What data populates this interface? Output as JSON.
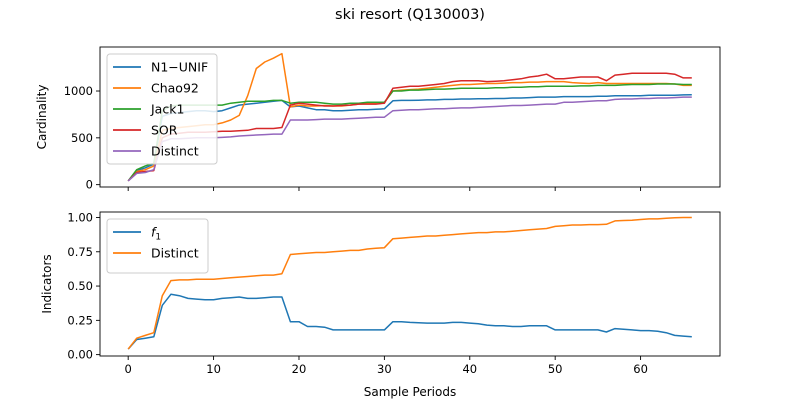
{
  "figure": {
    "title": "ski resort (Q130003)",
    "xlabel": "Sample Periods"
  },
  "chart_data": [
    {
      "type": "line",
      "ylabel": "Cardinality",
      "xlim": [
        -3.3,
        69.3
      ],
      "ylim": [
        -25,
        1470
      ],
      "xticks": [
        0,
        10,
        20,
        30,
        40,
        50,
        60
      ],
      "yticks": [
        0,
        500,
        1000
      ],
      "legend": "upper-left",
      "series": [
        {
          "name": "N1−UNIF",
          "color": "#1f77b4",
          "values": [
            40,
            150,
            180,
            220,
            730,
            760,
            770,
            780,
            790,
            790,
            780,
            790,
            820,
            850,
            860,
            870,
            880,
            890,
            900,
            830,
            840,
            820,
            800,
            800,
            790,
            790,
            795,
            800,
            800,
            805,
            810,
            895,
            900,
            900,
            902,
            905,
            905,
            910,
            910,
            915,
            915,
            918,
            918,
            920,
            920,
            925,
            925,
            930,
            935,
            935,
            935,
            940,
            940,
            940,
            940,
            945,
            945,
            950,
            950,
            950,
            950,
            955,
            955,
            955,
            955,
            958,
            960
          ]
        },
        {
          "name": "Chao92",
          "color": "#ff7f0e",
          "values": [
            40,
            140,
            160,
            200,
            580,
            600,
            610,
            620,
            630,
            640,
            640,
            660,
            690,
            740,
            950,
            1240,
            1310,
            1350,
            1400,
            830,
            850,
            840,
            840,
            845,
            840,
            840,
            850,
            860,
            870,
            875,
            880,
            1000,
            1010,
            1015,
            1020,
            1030,
            1040,
            1050,
            1060,
            1070,
            1070,
            1075,
            1080,
            1080,
            1085,
            1090,
            1090,
            1095,
            1095,
            1100,
            1100,
            1100,
            1090,
            1085,
            1080,
            1090,
            1080,
            1080,
            1080,
            1080,
            1080,
            1080,
            1080,
            1080,
            1075,
            1060,
            1060
          ]
        },
        {
          "name": "Jack1",
          "color": "#2ca02c",
          "values": [
            40,
            160,
            200,
            230,
            790,
            840,
            850,
            850,
            850,
            850,
            850,
            850,
            870,
            880,
            890,
            890,
            890,
            900,
            900,
            870,
            880,
            880,
            880,
            870,
            860,
            860,
            870,
            870,
            880,
            880,
            880,
            1000,
            1000,
            1010,
            1010,
            1015,
            1020,
            1020,
            1025,
            1030,
            1030,
            1030,
            1030,
            1035,
            1035,
            1040,
            1040,
            1045,
            1045,
            1050,
            1050,
            1050,
            1050,
            1055,
            1055,
            1060,
            1060,
            1060,
            1065,
            1070,
            1070,
            1070,
            1075,
            1075,
            1075,
            1070,
            1070
          ]
        },
        {
          "name": "SOR",
          "color": "#d62728",
          "values": [
            40,
            130,
            140,
            150,
            500,
            540,
            550,
            560,
            560,
            560,
            565,
            570,
            570,
            575,
            580,
            600,
            600,
            600,
            610,
            850,
            870,
            860,
            850,
            840,
            840,
            845,
            850,
            860,
            860,
            860,
            870,
            1030,
            1040,
            1050,
            1050,
            1060,
            1070,
            1080,
            1100,
            1110,
            1110,
            1110,
            1100,
            1105,
            1110,
            1120,
            1130,
            1150,
            1160,
            1180,
            1130,
            1130,
            1140,
            1150,
            1150,
            1150,
            1110,
            1170,
            1180,
            1190,
            1190,
            1190,
            1190,
            1190,
            1180,
            1140,
            1140
          ]
        },
        {
          "name": "Distinct",
          "color": "#9467bd",
          "values": [
            40,
            120,
            130,
            160,
            460,
            490,
            490,
            495,
            500,
            500,
            500,
            505,
            510,
            520,
            525,
            530,
            535,
            540,
            540,
            690,
            690,
            690,
            695,
            700,
            700,
            700,
            705,
            710,
            715,
            720,
            720,
            790,
            795,
            800,
            800,
            805,
            810,
            810,
            815,
            820,
            820,
            825,
            830,
            835,
            840,
            845,
            845,
            850,
            855,
            860,
            860,
            880,
            880,
            885,
            890,
            895,
            895,
            910,
            915,
            915,
            920,
            920,
            925,
            925,
            930,
            935,
            935
          ]
        }
      ]
    },
    {
      "type": "line",
      "ylabel": "Indicators",
      "xlim": [
        -3.3,
        69.3
      ],
      "ylim": [
        -0.01,
        1.04
      ],
      "xticks": [
        0,
        10,
        20,
        30,
        40,
        50,
        60
      ],
      "yticks": [
        0.0,
        0.25,
        0.5,
        0.75,
        1.0
      ],
      "legend": "upper-left",
      "series": [
        {
          "name": "f",
          "subscript": "1",
          "color": "#1f77b4",
          "values": [
            0.04,
            0.11,
            0.12,
            0.13,
            0.36,
            0.44,
            0.43,
            0.41,
            0.405,
            0.4,
            0.4,
            0.41,
            0.415,
            0.42,
            0.41,
            0.41,
            0.415,
            0.42,
            0.42,
            0.24,
            0.24,
            0.205,
            0.205,
            0.2,
            0.18,
            0.18,
            0.18,
            0.18,
            0.18,
            0.18,
            0.18,
            0.24,
            0.24,
            0.235,
            0.232,
            0.23,
            0.23,
            0.23,
            0.235,
            0.235,
            0.23,
            0.225,
            0.215,
            0.21,
            0.21,
            0.205,
            0.205,
            0.21,
            0.21,
            0.21,
            0.18,
            0.18,
            0.18,
            0.18,
            0.18,
            0.18,
            0.165,
            0.19,
            0.185,
            0.18,
            0.175,
            0.175,
            0.17,
            0.16,
            0.14,
            0.135,
            0.13
          ]
        },
        {
          "name": "Distinct",
          "subscript": "",
          "color": "#ff7f0e",
          "values": [
            0.04,
            0.12,
            0.14,
            0.16,
            0.43,
            0.54,
            0.545,
            0.545,
            0.55,
            0.55,
            0.55,
            0.555,
            0.56,
            0.565,
            0.57,
            0.575,
            0.58,
            0.58,
            0.59,
            0.73,
            0.735,
            0.74,
            0.745,
            0.745,
            0.75,
            0.755,
            0.76,
            0.76,
            0.77,
            0.775,
            0.78,
            0.845,
            0.85,
            0.855,
            0.86,
            0.865,
            0.865,
            0.87,
            0.875,
            0.88,
            0.885,
            0.89,
            0.89,
            0.895,
            0.895,
            0.9,
            0.905,
            0.91,
            0.915,
            0.92,
            0.935,
            0.94,
            0.945,
            0.945,
            0.948,
            0.948,
            0.95,
            0.975,
            0.978,
            0.98,
            0.985,
            0.99,
            0.99,
            0.995,
            0.998,
            1.0,
            1.0
          ]
        }
      ]
    }
  ]
}
